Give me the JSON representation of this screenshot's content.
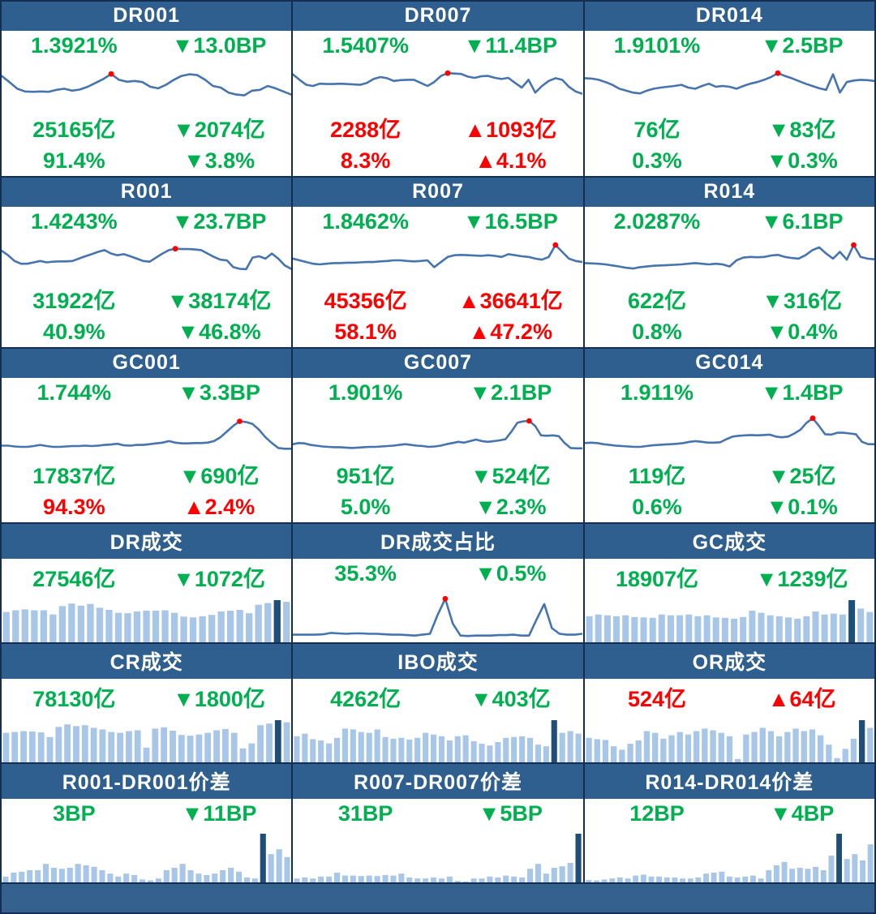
{
  "palette": {
    "green": "#00B050",
    "red": "#FF0000",
    "header_bg": "#2F5F8F",
    "header_text": "#FFFFFF",
    "line": "#4674AE",
    "bar_light": "#A8C6E8",
    "bar_dark": "#1F4E79",
    "dot": "#FF0000",
    "grid_border": "#142E52",
    "footer_bg": "#35618F"
  },
  "chart_data": [
    {
      "id": "DR001",
      "title": "DR001",
      "type": "line",
      "stats": [
        [
          {
            "text": "1.3921%",
            "color": "green"
          },
          {
            "text": "▼13.0BP",
            "color": "green"
          }
        ],
        [
          {
            "text": "25165亿",
            "color": "green"
          },
          {
            "text": "▼2074亿",
            "color": "green"
          }
        ],
        [
          {
            "text": "91.4%",
            "color": "green"
          },
          {
            "text": "▼3.8%",
            "color": "green"
          }
        ]
      ],
      "marker": "max-dot",
      "values": [
        78,
        62,
        45,
        38,
        37,
        38,
        37,
        42,
        45,
        40,
        43,
        50,
        60,
        70,
        83,
        68,
        63,
        65,
        62,
        50,
        46,
        55,
        68,
        78,
        82,
        80,
        68,
        52,
        48,
        35,
        30,
        28,
        40,
        42,
        52,
        46,
        38,
        30
      ]
    },
    {
      "id": "DR007",
      "title": "DR007",
      "type": "line",
      "stats": [
        [
          {
            "text": "1.5407%",
            "color": "green"
          },
          {
            "text": "▼11.4BP",
            "color": "green"
          }
        ],
        [
          {
            "text": "2288亿",
            "color": "red"
          },
          {
            "text": "▲1093亿",
            "color": "red"
          }
        ],
        [
          {
            "text": "8.3%",
            "color": "red"
          },
          {
            "text": "▲4.1%",
            "color": "red"
          }
        ]
      ],
      "marker": "max-dot",
      "values": [
        82,
        68,
        55,
        52,
        58,
        57,
        57,
        58,
        57,
        56,
        55,
        60,
        70,
        75,
        72,
        65,
        67,
        68,
        68,
        60,
        52,
        62,
        78,
        85,
        84,
        83,
        76,
        73,
        77,
        78,
        73,
        70,
        73,
        60,
        48,
        68,
        35,
        52,
        65,
        72,
        68,
        50,
        38,
        32
      ]
    },
    {
      "id": "DR014",
      "title": "DR014",
      "type": "line",
      "stats": [
        [
          {
            "text": "1.9101%",
            "color": "green"
          },
          {
            "text": "▼2.5BP",
            "color": "green"
          }
        ],
        [
          {
            "text": "76亿",
            "color": "green"
          },
          {
            "text": "▼83亿",
            "color": "green"
          }
        ],
        [
          {
            "text": "0.3%",
            "color": "green"
          },
          {
            "text": "▼0.3%",
            "color": "green"
          }
        ]
      ],
      "marker": "max-dot",
      "values": [
        72,
        71,
        68,
        62,
        55,
        45,
        40,
        35,
        33,
        40,
        45,
        48,
        50,
        52,
        55,
        48,
        45,
        52,
        58,
        50,
        52,
        50,
        45,
        52,
        58,
        62,
        68,
        75,
        85,
        78,
        72,
        65,
        58,
        52,
        46,
        42,
        82,
        35,
        62,
        66,
        68,
        67,
        65
      ]
    },
    {
      "id": "R001",
      "title": "R001",
      "type": "line",
      "stats": [
        [
          {
            "text": "1.4243%",
            "color": "green"
          },
          {
            "text": "▼23.7BP",
            "color": "green"
          }
        ],
        [
          {
            "text": "31922亿",
            "color": "green"
          },
          {
            "text": "▼38174亿",
            "color": "green"
          }
        ],
        [
          {
            "text": "40.9%",
            "color": "green"
          },
          {
            "text": "▼46.8%",
            "color": "green"
          }
        ]
      ],
      "marker": "max-dot",
      "values": [
        78,
        65,
        48,
        40,
        40,
        44,
        48,
        44,
        46,
        47,
        47,
        48,
        55,
        62,
        68,
        75,
        80,
        70,
        65,
        68,
        62,
        55,
        48,
        46,
        58,
        70,
        80,
        84,
        83,
        83,
        82,
        80,
        70,
        60,
        52,
        50,
        30,
        25,
        24,
        58,
        62,
        55,
        70,
        55,
        35,
        25
      ]
    },
    {
      "id": "R007",
      "title": "R007",
      "type": "line",
      "stats": [
        [
          {
            "text": "1.8462%",
            "color": "green"
          },
          {
            "text": "▼16.5BP",
            "color": "green"
          }
        ],
        [
          {
            "text": "45356亿",
            "color": "red"
          },
          {
            "text": "▲36641亿",
            "color": "red"
          }
        ],
        [
          {
            "text": "58.1%",
            "color": "red"
          },
          {
            "text": "▲47.2%",
            "color": "red"
          }
        ]
      ],
      "marker": "max-dot",
      "values": [
        55,
        50,
        45,
        40,
        38,
        40,
        42,
        42,
        43,
        43,
        44,
        45,
        45,
        47,
        48,
        50,
        50,
        48,
        47,
        48,
        50,
        30,
        45,
        60,
        65,
        66,
        65,
        64,
        63,
        65,
        63,
        60,
        68,
        65,
        62,
        60,
        55,
        52,
        60,
        95,
        75,
        55,
        48,
        45
      ]
    },
    {
      "id": "R014",
      "title": "R014",
      "type": "line",
      "stats": [
        [
          {
            "text": "2.0287%",
            "color": "green"
          },
          {
            "text": "▼6.1BP",
            "color": "green"
          }
        ],
        [
          {
            "text": "622亿",
            "color": "green"
          },
          {
            "text": "▼316亿",
            "color": "green"
          }
        ],
        [
          {
            "text": "0.8%",
            "color": "green"
          },
          {
            "text": "▼0.4%",
            "color": "green"
          }
        ]
      ],
      "marker": "max-dot",
      "values": [
        42,
        41,
        40,
        38,
        35,
        32,
        28,
        26,
        30,
        32,
        34,
        35,
        36,
        37,
        38,
        40,
        42,
        40,
        38,
        40,
        38,
        32,
        50,
        58,
        60,
        59,
        60,
        64,
        66,
        60,
        57,
        55,
        65,
        80,
        88,
        70,
        55,
        75,
        52,
        95,
        60,
        55,
        53
      ]
    },
    {
      "id": "GC001",
      "title": "GC001",
      "type": "line",
      "stats": [
        [
          {
            "text": "1.744%",
            "color": "green"
          },
          {
            "text": "▼3.3BP",
            "color": "green"
          }
        ],
        [
          {
            "text": "17837亿",
            "color": "green"
          },
          {
            "text": "▼690亿",
            "color": "green"
          }
        ],
        [
          {
            "text": "94.3%",
            "color": "red"
          },
          {
            "text": "▲2.4%",
            "color": "red"
          }
        ]
      ],
      "marker": "max-dot",
      "values": [
        18,
        18,
        16,
        15,
        15,
        17,
        20,
        17,
        15,
        15,
        16,
        17,
        17,
        18,
        17,
        18,
        20,
        21,
        23,
        19,
        18,
        20,
        20,
        22,
        24,
        26,
        30,
        26,
        24,
        24,
        25,
        25,
        26,
        30,
        40,
        55,
        70,
        82,
        80,
        75,
        60,
        40,
        25,
        12,
        10,
        10
      ]
    },
    {
      "id": "GC007",
      "title": "GC007",
      "type": "line",
      "stats": [
        [
          {
            "text": "1.901%",
            "color": "green"
          },
          {
            "text": "▼2.1BP",
            "color": "green"
          }
        ],
        [
          {
            "text": "951亿",
            "color": "green"
          },
          {
            "text": "▼524亿",
            "color": "green"
          }
        ],
        [
          {
            "text": "5.0%",
            "color": "green"
          },
          {
            "text": "▼2.3%",
            "color": "green"
          }
        ]
      ],
      "marker": "max-dot",
      "values": [
        22,
        25,
        24,
        20,
        18,
        16,
        15,
        14,
        14,
        13,
        12,
        13,
        14,
        15,
        15,
        16,
        17,
        18,
        20,
        22,
        20,
        18,
        17,
        15,
        16,
        18,
        22,
        25,
        28,
        26,
        30,
        34,
        30,
        28,
        30,
        32,
        35,
        55,
        78,
        82,
        83,
        70,
        45,
        44,
        45,
        43,
        25,
        12,
        11,
        11
      ]
    },
    {
      "id": "GC014",
      "title": "GC014",
      "type": "line",
      "stats": [
        [
          {
            "text": "1.911%",
            "color": "green"
          },
          {
            "text": "▼1.4BP",
            "color": "green"
          }
        ],
        [
          {
            "text": "119亿",
            "color": "green"
          },
          {
            "text": "▼25亿",
            "color": "green"
          }
        ],
        [
          {
            "text": "0.6%",
            "color": "green"
          },
          {
            "text": "▼0.1%",
            "color": "green"
          }
        ]
      ],
      "marker": "max-dot",
      "values": [
        25,
        26,
        25,
        22,
        20,
        18,
        17,
        16,
        15,
        15,
        17,
        19,
        20,
        21,
        22,
        23,
        25,
        28,
        30,
        28,
        26,
        26,
        27,
        35,
        42,
        44,
        45,
        46,
        45,
        46,
        47,
        42,
        40,
        42,
        50,
        60,
        78,
        90,
        70,
        48,
        47,
        52,
        52,
        50,
        48,
        28,
        22,
        22
      ]
    },
    {
      "id": "DR-volume",
      "title": "DR成交",
      "type": "bar",
      "stats": [
        [
          {
            "text": "27546亿",
            "color": "green"
          },
          {
            "text": "▼1072亿",
            "color": "green"
          }
        ]
      ],
      "marker": "max-dark-bar",
      "values": [
        72,
        76,
        78,
        76,
        76,
        66,
        86,
        92,
        87,
        91,
        82,
        77,
        70,
        69,
        73,
        75,
        75,
        76,
        70,
        61,
        59,
        62,
        65,
        73,
        75,
        77,
        69,
        89,
        93,
        100,
        96
      ]
    },
    {
      "id": "DR-volume-share",
      "title": "DR成交占比",
      "type": "line",
      "stats": [
        [
          {
            "text": "35.3%",
            "color": "green"
          },
          {
            "text": "▼0.5%",
            "color": "green"
          }
        ]
      ],
      "marker": "max-dot",
      "values": [
        10,
        10,
        10,
        10,
        11,
        14,
        13,
        12,
        13,
        13,
        12,
        12,
        11,
        10,
        10,
        9,
        8,
        10,
        12,
        55,
        92,
        35,
        8,
        7,
        8,
        8,
        8,
        9,
        9,
        10,
        8,
        8,
        45,
        80,
        25,
        12,
        10,
        10,
        12
      ]
    },
    {
      "id": "GC-volume",
      "title": "GC成交",
      "type": "bar",
      "stats": [
        [
          {
            "text": "18907亿",
            "color": "green"
          },
          {
            "text": "▼1239亿",
            "color": "green"
          }
        ]
      ],
      "marker": "max-dark-bar",
      "values": [
        62,
        66,
        64,
        62,
        64,
        60,
        59,
        58,
        66,
        64,
        64,
        66,
        62,
        64,
        59,
        58,
        56,
        60,
        75,
        70,
        64,
        62,
        59,
        56,
        62,
        73,
        66,
        68,
        66,
        100,
        80,
        72
      ]
    },
    {
      "id": "CR-volume",
      "title": "CR成交",
      "type": "bar",
      "stats": [
        [
          {
            "text": "78130亿",
            "color": "green"
          },
          {
            "text": "▼1800亿",
            "color": "green"
          }
        ]
      ],
      "marker": "max-dark-bar",
      "values": [
        70,
        72,
        74,
        73,
        71,
        60,
        84,
        90,
        86,
        88,
        82,
        78,
        72,
        70,
        74,
        76,
        35,
        80,
        83,
        75,
        65,
        63,
        66,
        70,
        76,
        79,
        70,
        33,
        45,
        88,
        92,
        100,
        95
      ]
    },
    {
      "id": "IBO-volume",
      "title": "IBO成交",
      "type": "bar",
      "stats": [
        [
          {
            "text": "4262亿",
            "color": "green"
          },
          {
            "text": "▼403亿",
            "color": "green"
          }
        ]
      ],
      "marker": "max-dark-bar",
      "values": [
        62,
        68,
        55,
        52,
        45,
        58,
        80,
        78,
        72,
        70,
        78,
        60,
        56,
        58,
        54,
        58,
        70,
        66,
        62,
        52,
        62,
        64,
        50,
        44,
        40,
        48,
        58,
        60,
        62,
        58,
        42,
        38,
        100,
        70,
        74,
        68
      ]
    },
    {
      "id": "OR-volume",
      "title": "OR成交",
      "type": "bar",
      "stats": [
        [
          {
            "text": "524亿",
            "color": "red"
          },
          {
            "text": "▲64亿",
            "color": "red"
          }
        ]
      ],
      "marker": "max-dark-bar",
      "values": [
        58,
        55,
        53,
        38,
        30,
        44,
        52,
        74,
        70,
        56,
        64,
        72,
        66,
        74,
        80,
        76,
        70,
        62,
        8,
        66,
        72,
        82,
        74,
        62,
        72,
        80,
        74,
        78,
        64,
        42,
        10,
        32,
        56,
        100,
        82
      ]
    },
    {
      "id": "R001-DR001-spread",
      "title": "R001-DR001价差",
      "type": "bar",
      "stats": [
        [
          {
            "text": "3BP",
            "color": "green"
          },
          {
            "text": "▼11BP",
            "color": "green"
          }
        ]
      ],
      "marker": "max-dark-bar",
      "values": [
        12,
        20,
        22,
        25,
        25,
        38,
        30,
        28,
        30,
        38,
        35,
        32,
        25,
        18,
        12,
        18,
        15,
        6,
        4,
        8,
        25,
        30,
        38,
        25,
        18,
        15,
        18,
        25,
        30,
        22,
        10,
        8,
        100,
        58,
        68,
        52
      ]
    },
    {
      "id": "R007-DR007-spread",
      "title": "R007-DR007价差",
      "type": "bar",
      "stats": [
        [
          {
            "text": "31BP",
            "color": "green"
          },
          {
            "text": "▼5BP",
            "color": "green"
          }
        ]
      ],
      "marker": "max-dark-bar",
      "values": [
        8,
        10,
        8,
        12,
        12,
        20,
        14,
        14,
        13,
        14,
        13,
        15,
        14,
        18,
        10,
        8,
        8,
        10,
        8,
        12,
        3,
        2,
        8,
        8,
        12,
        10,
        14,
        12,
        10,
        28,
        38,
        18,
        30,
        33,
        40,
        100
      ]
    },
    {
      "id": "R014-DR014-spread",
      "title": "R014-DR014价差",
      "type": "bar",
      "stats": [
        [
          {
            "text": "12BP",
            "color": "green"
          },
          {
            "text": "▼4BP",
            "color": "green"
          }
        ]
      ],
      "marker": "max-dark-bar",
      "values": [
        5,
        4,
        6,
        8,
        10,
        8,
        14,
        16,
        12,
        12,
        10,
        10,
        8,
        8,
        10,
        18,
        20,
        22,
        12,
        10,
        12,
        14,
        8,
        25,
        35,
        42,
        28,
        30,
        28,
        32,
        25,
        55,
        100,
        48,
        58,
        45,
        78
      ]
    }
  ]
}
